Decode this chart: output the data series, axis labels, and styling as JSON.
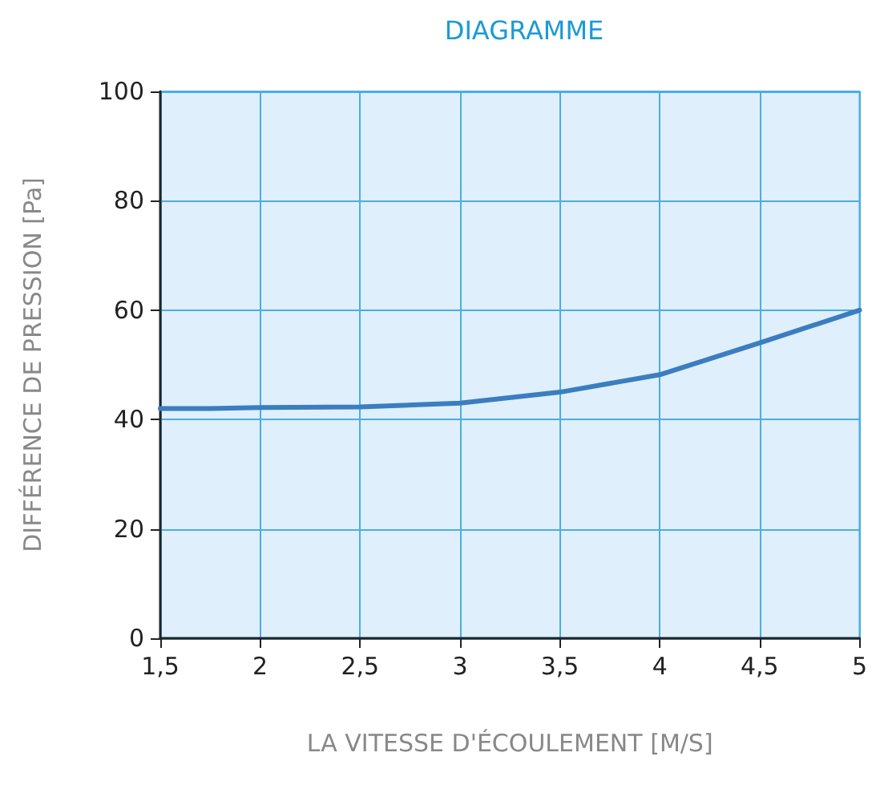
{
  "chart_data": {
    "type": "line",
    "title": "DIAGRAMME",
    "xlabel": "LA VITESSE D'ÉCOULEMENT [M/S]",
    "ylabel": "DIFFÉRENCE DE PRESSION [Pa]",
    "x": [
      1.5,
      1.75,
      2,
      2.5,
      3,
      3.5,
      4,
      4.5,
      5
    ],
    "series": [
      {
        "color": "#3b7dc0",
        "values": [
          42,
          42,
          42.2,
          42.3,
          43,
          45,
          48.2,
          54,
          60
        ]
      }
    ],
    "xlim": [
      1.5,
      5
    ],
    "xticks": [
      {
        "value": 1.5,
        "label": "1,5"
      },
      2,
      {
        "value": 2.5,
        "label": "2,5"
      },
      3,
      {
        "value": 3.5,
        "label": "3,5"
      },
      4,
      {
        "value": 4.5,
        "label": "4,5"
      },
      5
    ],
    "ylim": [
      0,
      100
    ],
    "yticks": [
      0,
      20,
      40,
      60,
      80,
      100
    ],
    "grid": true,
    "marker": "none",
    "line_style": "solid"
  }
}
